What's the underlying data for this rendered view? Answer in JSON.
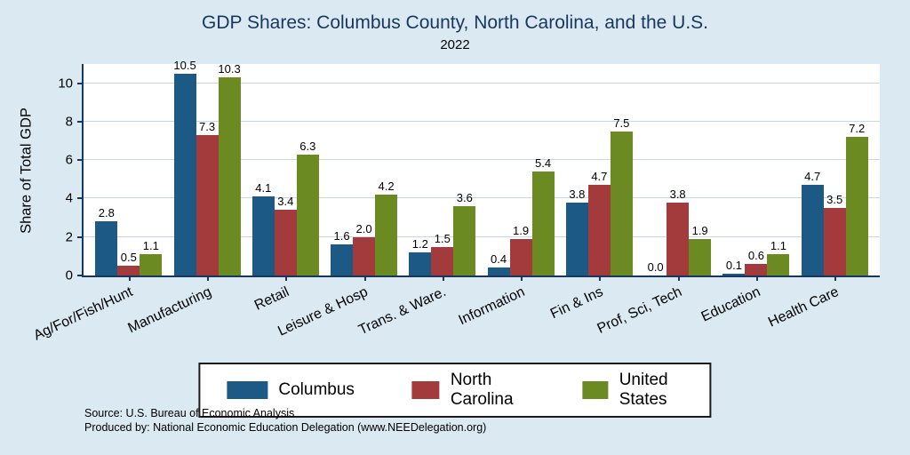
{
  "title": "GDP Shares: Columbus County, North Carolina, and the U.S.",
  "subtitle": "2022",
  "ylabel": "Share of Total GDP",
  "notes": {
    "line1": "Source: U.S. Bureau of Economic Analysis",
    "line2": "Produced by: National Economic Education Delegation (www.NEEDelegation.org)"
  },
  "colors": {
    "background": "#dbe9f3",
    "plot_background": "#ffffff",
    "axis": "#17375e",
    "gridline": "#c6d8e8",
    "title_text": "#17375e"
  },
  "chart_data": {
    "type": "bar",
    "title": "GDP Shares: Columbus County, North Carolina, and the U.S.",
    "subtitle": "2022",
    "xlabel": "",
    "ylabel": "Share of Total GDP",
    "ylim": [
      0,
      11
    ],
    "yticks": [
      0,
      2,
      4,
      6,
      8,
      10
    ],
    "grid": true,
    "legend_position": "bottom",
    "categories": [
      "Ag/For/Fish/Hunt",
      "Manufacturing",
      "Retail",
      "Leisure & Hosp",
      "Trans. & Ware.",
      "Information",
      "Fin & Ins",
      "Prof, Sci, Tech",
      "Education",
      "Health Care"
    ],
    "series": [
      {
        "name": "Columbus",
        "color": "#1c5a85",
        "values": [
          2.8,
          10.5,
          4.1,
          1.6,
          1.2,
          0.4,
          3.8,
          0.0,
          0.1,
          4.7
        ]
      },
      {
        "name": "North Carolina",
        "color": "#a33a3b",
        "values": [
          0.5,
          7.3,
          3.4,
          2.0,
          1.5,
          1.9,
          4.7,
          3.8,
          0.6,
          3.5
        ]
      },
      {
        "name": "United States",
        "color": "#6b8b22",
        "values": [
          1.1,
          10.3,
          6.3,
          4.2,
          3.6,
          5.4,
          7.5,
          1.9,
          1.1,
          7.2
        ]
      }
    ]
  }
}
